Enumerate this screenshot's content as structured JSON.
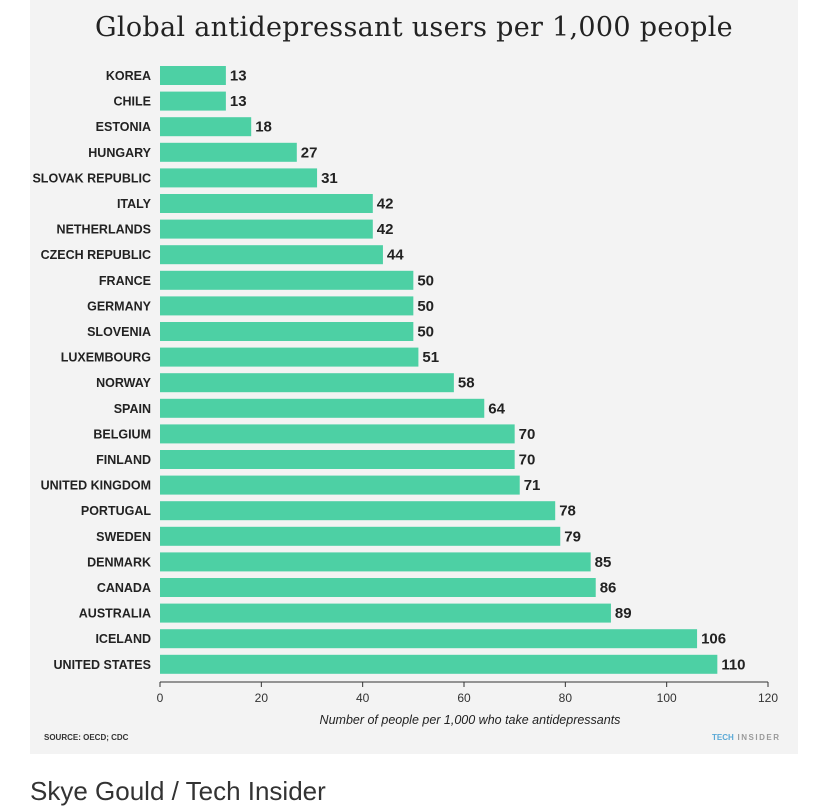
{
  "title": "Global antidepressant users per 1,000 people",
  "source": "SOURCE: OECD; CDC",
  "brand": {
    "part1": "TECH",
    "part2": "INSIDER"
  },
  "credit": "Skye Gould / Tech Insider",
  "colors": {
    "bar": "#4dd0a4",
    "background": "#f3f3f3",
    "text": "#222222"
  },
  "chart_data": {
    "type": "bar",
    "orientation": "horizontal",
    "title": "Global antidepressant users per 1,000 people",
    "xlabel": "Number of people per 1,000 who take antidepressants",
    "ylabel": "",
    "categories": [
      "KOREA",
      "CHILE",
      "ESTONIA",
      "HUNGARY",
      "SLOVAK REPUBLIC",
      "ITALY",
      "NETHERLANDS",
      "CZECH REPUBLIC",
      "FRANCE",
      "GERMANY",
      "SLOVENIA",
      "LUXEMBOURG",
      "NORWAY",
      "SPAIN",
      "BELGIUM",
      "FINLAND",
      "UNITED KINGDOM",
      "PORTUGAL",
      "SWEDEN",
      "DENMARK",
      "CANADA",
      "AUSTRALIA",
      "ICELAND",
      "UNITED STATES"
    ],
    "values": [
      13,
      13,
      18,
      27,
      31,
      42,
      42,
      44,
      50,
      50,
      50,
      51,
      58,
      64,
      70,
      70,
      71,
      78,
      79,
      85,
      86,
      89,
      106,
      110
    ],
    "xlim": [
      0,
      120
    ],
    "xticks": [
      0,
      20,
      40,
      60,
      80,
      100,
      120
    ],
    "grid": false,
    "legend": "none"
  }
}
